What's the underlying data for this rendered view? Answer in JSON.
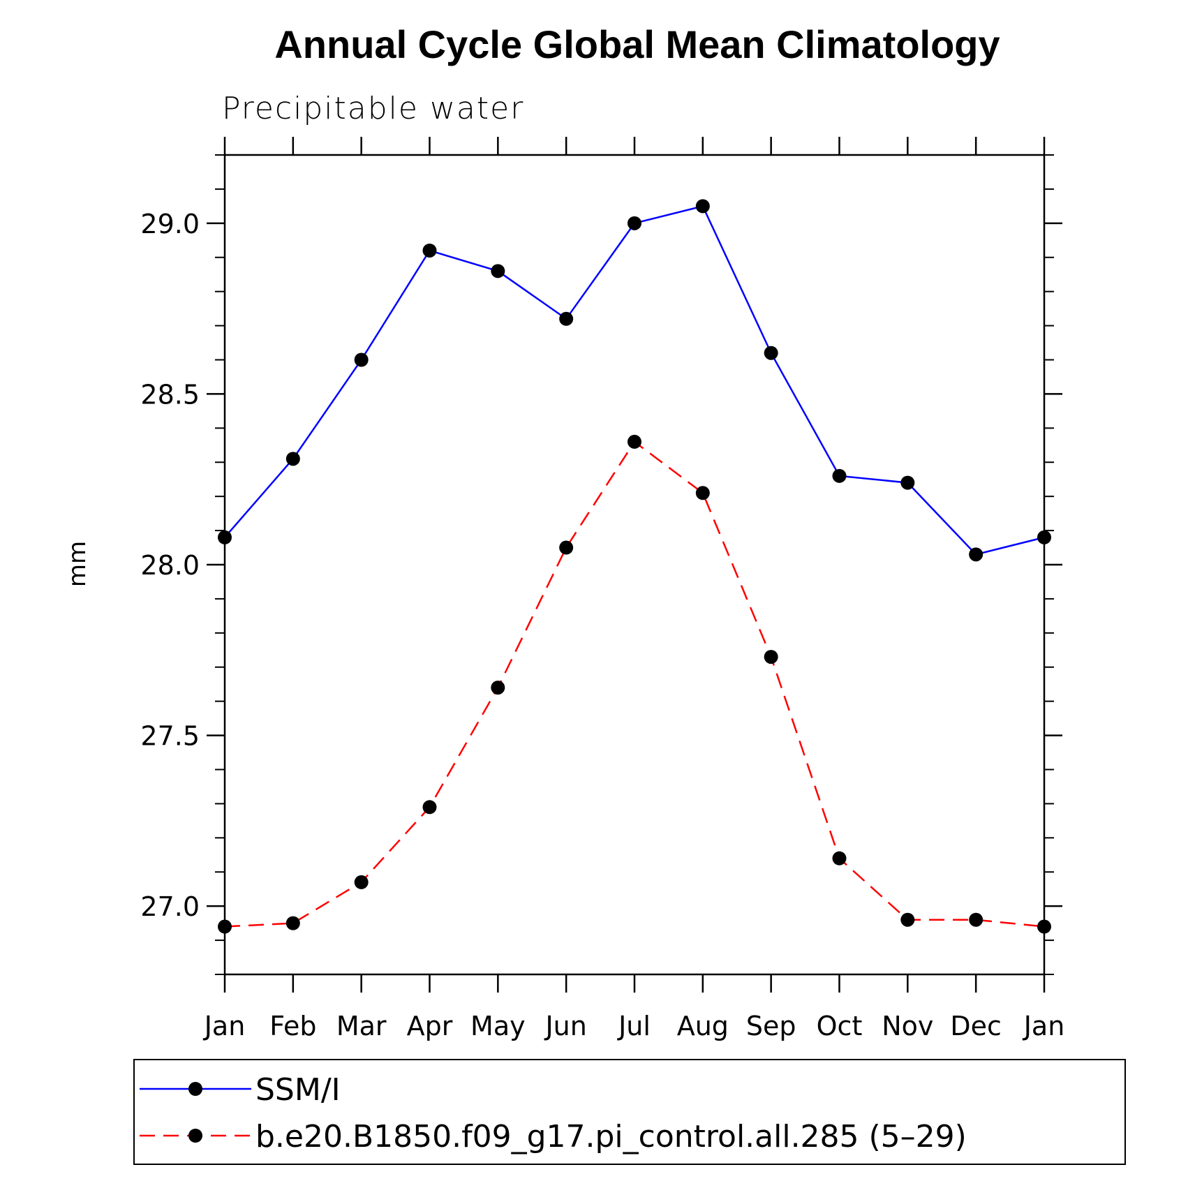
{
  "chart_data": {
    "type": "line",
    "title": "Annual Cycle Global Mean Climatology",
    "subtitle": "Precipitable water",
    "xlabel": "",
    "ylabel": "mm",
    "categories": [
      "Jan",
      "Feb",
      "Mar",
      "Apr",
      "May",
      "Jun",
      "Jul",
      "Aug",
      "Sep",
      "Oct",
      "Nov",
      "Dec",
      "Jan"
    ],
    "ylim": [
      26.8,
      29.2
    ],
    "yticks": [
      "27.0",
      "27.5",
      "28.0",
      "28.5",
      "29.0"
    ],
    "grid": false,
    "legend_position": "bottom",
    "series": [
      {
        "name": "SSM/I",
        "color": "#0000ff",
        "line_style": "solid",
        "values": [
          28.08,
          28.31,
          28.6,
          28.92,
          28.86,
          28.72,
          29.0,
          29.05,
          28.62,
          28.26,
          28.24,
          28.03,
          28.08
        ]
      },
      {
        "name": "b.e20.B1850.f09_g17.pi_control.all.285 (5–29)",
        "color": "#ff0000",
        "line_style": "dashed",
        "values": [
          26.94,
          26.95,
          27.07,
          27.29,
          27.64,
          28.05,
          28.36,
          28.21,
          27.73,
          27.14,
          26.96,
          26.96,
          26.94
        ]
      }
    ]
  }
}
